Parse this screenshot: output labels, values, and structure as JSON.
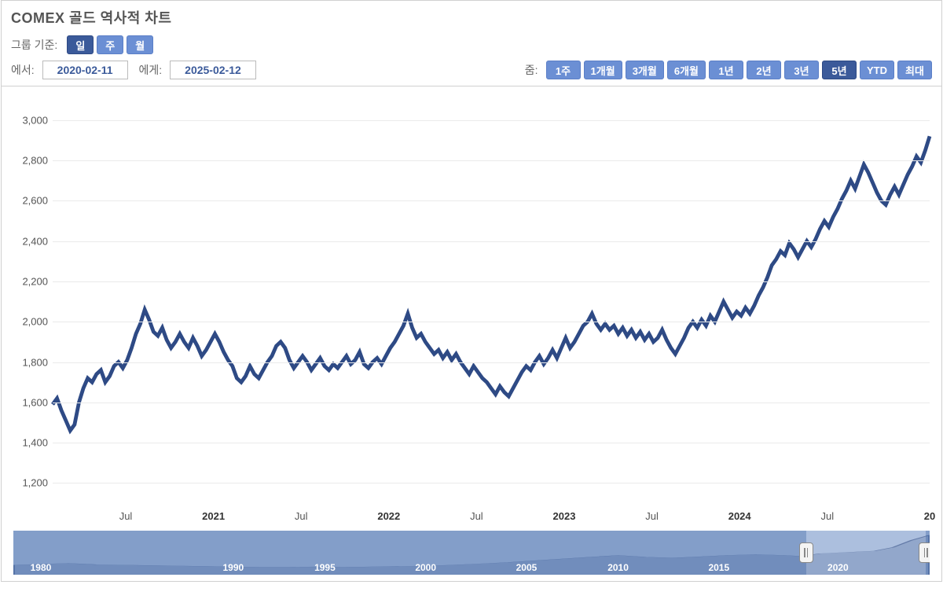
{
  "title": "COMEX 골드 역사적 차트",
  "group_by": {
    "label": "그룹 기준:",
    "options": [
      {
        "label": "일",
        "active": true
      },
      {
        "label": "주",
        "active": false
      },
      {
        "label": "월",
        "active": false
      }
    ]
  },
  "date_range": {
    "from_label": "에서:",
    "from_value": "2020-02-11",
    "to_label": "에게:",
    "to_value": "2025-02-12"
  },
  "zoom": {
    "label": "줌:",
    "options": [
      {
        "label": "1주",
        "active": false
      },
      {
        "label": "1개월",
        "active": false
      },
      {
        "label": "3개월",
        "active": false
      },
      {
        "label": "6개월",
        "active": false
      },
      {
        "label": "1년",
        "active": false
      },
      {
        "label": "2년",
        "active": false
      },
      {
        "label": "3년",
        "active": false
      },
      {
        "label": "5년",
        "active": true
      },
      {
        "label": "YTD",
        "active": false
      },
      {
        "label": "최대",
        "active": false
      }
    ]
  },
  "chart": {
    "type": "line",
    "line_color": "#2e4a85",
    "line_width": 1.6,
    "background_color": "#ffffff",
    "grid_color": "#eaeaea",
    "y": {
      "min": 1100,
      "max": 3050,
      "ticks": [
        1200,
        1400,
        1600,
        1800,
        2000,
        2200,
        2400,
        2600,
        2800,
        3000
      ],
      "fontsize": 13,
      "color": "#555555"
    },
    "x": {
      "min": 0,
      "max": 60,
      "ticks": [
        {
          "pos": 5,
          "label": "Jul",
          "bold": false
        },
        {
          "pos": 11,
          "label": "2021",
          "bold": true
        },
        {
          "pos": 17,
          "label": "Jul",
          "bold": false
        },
        {
          "pos": 23,
          "label": "2022",
          "bold": true
        },
        {
          "pos": 29,
          "label": "Jul",
          "bold": false
        },
        {
          "pos": 35,
          "label": "2023",
          "bold": true
        },
        {
          "pos": 41,
          "label": "Jul",
          "bold": false
        },
        {
          "pos": 47,
          "label": "2024",
          "bold": true
        },
        {
          "pos": 53,
          "label": "Jul",
          "bold": false
        },
        {
          "pos": 60,
          "label": "20",
          "bold": true
        }
      ],
      "fontsize": 13
    },
    "series": [
      [
        0,
        1590
      ],
      [
        0.3,
        1620
      ],
      [
        0.6,
        1560
      ],
      [
        0.9,
        1510
      ],
      [
        1.2,
        1460
      ],
      [
        1.5,
        1490
      ],
      [
        1.8,
        1600
      ],
      [
        2.1,
        1670
      ],
      [
        2.4,
        1720
      ],
      [
        2.7,
        1700
      ],
      [
        3.0,
        1740
      ],
      [
        3.3,
        1760
      ],
      [
        3.6,
        1700
      ],
      [
        3.9,
        1730
      ],
      [
        4.2,
        1780
      ],
      [
        4.5,
        1800
      ],
      [
        4.8,
        1770
      ],
      [
        5.1,
        1810
      ],
      [
        5.4,
        1870
      ],
      [
        5.7,
        1940
      ],
      [
        6.0,
        1990
      ],
      [
        6.3,
        2060
      ],
      [
        6.6,
        2010
      ],
      [
        6.9,
        1950
      ],
      [
        7.2,
        1930
      ],
      [
        7.5,
        1970
      ],
      [
        7.8,
        1910
      ],
      [
        8.1,
        1870
      ],
      [
        8.4,
        1900
      ],
      [
        8.7,
        1940
      ],
      [
        9.0,
        1900
      ],
      [
        9.3,
        1870
      ],
      [
        9.6,
        1920
      ],
      [
        9.9,
        1880
      ],
      [
        10.2,
        1830
      ],
      [
        10.5,
        1860
      ],
      [
        10.8,
        1900
      ],
      [
        11.1,
        1940
      ],
      [
        11.4,
        1900
      ],
      [
        11.7,
        1850
      ],
      [
        12.0,
        1810
      ],
      [
        12.3,
        1780
      ],
      [
        12.6,
        1720
      ],
      [
        12.9,
        1700
      ],
      [
        13.2,
        1730
      ],
      [
        13.5,
        1780
      ],
      [
        13.8,
        1740
      ],
      [
        14.1,
        1720
      ],
      [
        14.4,
        1760
      ],
      [
        14.7,
        1800
      ],
      [
        15.0,
        1830
      ],
      [
        15.3,
        1880
      ],
      [
        15.6,
        1900
      ],
      [
        15.9,
        1870
      ],
      [
        16.2,
        1810
      ],
      [
        16.5,
        1770
      ],
      [
        16.8,
        1800
      ],
      [
        17.1,
        1830
      ],
      [
        17.4,
        1800
      ],
      [
        17.7,
        1760
      ],
      [
        18.0,
        1790
      ],
      [
        18.3,
        1820
      ],
      [
        18.6,
        1780
      ],
      [
        18.9,
        1760
      ],
      [
        19.2,
        1790
      ],
      [
        19.5,
        1770
      ],
      [
        19.8,
        1800
      ],
      [
        20.1,
        1830
      ],
      [
        20.4,
        1790
      ],
      [
        20.7,
        1810
      ],
      [
        21.0,
        1850
      ],
      [
        21.3,
        1790
      ],
      [
        21.6,
        1770
      ],
      [
        21.9,
        1800
      ],
      [
        22.2,
        1820
      ],
      [
        22.5,
        1790
      ],
      [
        22.8,
        1830
      ],
      [
        23.1,
        1870
      ],
      [
        23.4,
        1900
      ],
      [
        23.7,
        1940
      ],
      [
        24.0,
        1980
      ],
      [
        24.3,
        2040
      ],
      [
        24.6,
        1970
      ],
      [
        24.9,
        1920
      ],
      [
        25.2,
        1940
      ],
      [
        25.5,
        1900
      ],
      [
        25.8,
        1870
      ],
      [
        26.1,
        1840
      ],
      [
        26.4,
        1860
      ],
      [
        26.7,
        1820
      ],
      [
        27.0,
        1850
      ],
      [
        27.3,
        1810
      ],
      [
        27.6,
        1840
      ],
      [
        27.9,
        1800
      ],
      [
        28.2,
        1770
      ],
      [
        28.5,
        1740
      ],
      [
        28.8,
        1780
      ],
      [
        29.1,
        1750
      ],
      [
        29.4,
        1720
      ],
      [
        29.7,
        1700
      ],
      [
        30.0,
        1670
      ],
      [
        30.3,
        1640
      ],
      [
        30.6,
        1680
      ],
      [
        30.9,
        1650
      ],
      [
        31.2,
        1630
      ],
      [
        31.5,
        1670
      ],
      [
        31.8,
        1710
      ],
      [
        32.1,
        1750
      ],
      [
        32.4,
        1780
      ],
      [
        32.7,
        1760
      ],
      [
        33.0,
        1800
      ],
      [
        33.3,
        1830
      ],
      [
        33.6,
        1790
      ],
      [
        33.9,
        1820
      ],
      [
        34.2,
        1860
      ],
      [
        34.5,
        1820
      ],
      [
        34.8,
        1870
      ],
      [
        35.1,
        1920
      ],
      [
        35.4,
        1870
      ],
      [
        35.7,
        1900
      ],
      [
        36.0,
        1940
      ],
      [
        36.3,
        1980
      ],
      [
        36.6,
        2000
      ],
      [
        36.9,
        2040
      ],
      [
        37.2,
        1990
      ],
      [
        37.5,
        1960
      ],
      [
        37.8,
        1990
      ],
      [
        38.1,
        1960
      ],
      [
        38.4,
        1980
      ],
      [
        38.7,
        1940
      ],
      [
        39.0,
        1970
      ],
      [
        39.3,
        1930
      ],
      [
        39.6,
        1960
      ],
      [
        39.9,
        1920
      ],
      [
        40.2,
        1950
      ],
      [
        40.5,
        1910
      ],
      [
        40.8,
        1940
      ],
      [
        41.1,
        1900
      ],
      [
        41.4,
        1920
      ],
      [
        41.7,
        1960
      ],
      [
        42.0,
        1910
      ],
      [
        42.3,
        1870
      ],
      [
        42.6,
        1840
      ],
      [
        42.9,
        1880
      ],
      [
        43.2,
        1920
      ],
      [
        43.5,
        1970
      ],
      [
        43.8,
        2000
      ],
      [
        44.1,
        1970
      ],
      [
        44.4,
        2010
      ],
      [
        44.7,
        1980
      ],
      [
        45.0,
        2030
      ],
      [
        45.3,
        2000
      ],
      [
        45.6,
        2050
      ],
      [
        45.9,
        2100
      ],
      [
        46.2,
        2060
      ],
      [
        46.5,
        2020
      ],
      [
        46.8,
        2050
      ],
      [
        47.1,
        2030
      ],
      [
        47.4,
        2070
      ],
      [
        47.7,
        2040
      ],
      [
        48.0,
        2080
      ],
      [
        48.3,
        2130
      ],
      [
        48.6,
        2170
      ],
      [
        48.9,
        2220
      ],
      [
        49.2,
        2280
      ],
      [
        49.5,
        2310
      ],
      [
        49.8,
        2350
      ],
      [
        50.1,
        2330
      ],
      [
        50.4,
        2390
      ],
      [
        50.7,
        2360
      ],
      [
        51.0,
        2320
      ],
      [
        51.3,
        2360
      ],
      [
        51.6,
        2400
      ],
      [
        51.9,
        2370
      ],
      [
        52.2,
        2410
      ],
      [
        52.5,
        2460
      ],
      [
        52.8,
        2500
      ],
      [
        53.1,
        2470
      ],
      [
        53.4,
        2520
      ],
      [
        53.7,
        2560
      ],
      [
        54.0,
        2610
      ],
      [
        54.3,
        2650
      ],
      [
        54.6,
        2700
      ],
      [
        54.9,
        2660
      ],
      [
        55.2,
        2720
      ],
      [
        55.5,
        2780
      ],
      [
        55.8,
        2740
      ],
      [
        56.1,
        2690
      ],
      [
        56.4,
        2640
      ],
      [
        56.7,
        2600
      ],
      [
        57.0,
        2580
      ],
      [
        57.3,
        2630
      ],
      [
        57.6,
        2670
      ],
      [
        57.9,
        2630
      ],
      [
        58.2,
        2680
      ],
      [
        58.5,
        2730
      ],
      [
        58.8,
        2770
      ],
      [
        59.1,
        2820
      ],
      [
        59.4,
        2790
      ],
      [
        59.7,
        2850
      ],
      [
        60.0,
        2920
      ]
    ]
  },
  "navigator": {
    "background_color": "#9db3d7",
    "mask_color": "rgba(110,140,190,0.55)",
    "sel_start_pct": 86.5,
    "sel_end_pct": 99.6,
    "x_labels": [
      {
        "pos_pct": 3,
        "label": "1980"
      },
      {
        "pos_pct": 24,
        "label": "1990"
      },
      {
        "pos_pct": 34,
        "label": "1995"
      },
      {
        "pos_pct": 45,
        "label": "2000"
      },
      {
        "pos_pct": 56,
        "label": "2005"
      },
      {
        "pos_pct": 66,
        "label": "2010"
      },
      {
        "pos_pct": 77,
        "label": "2015"
      },
      {
        "pos_pct": 90,
        "label": "2020"
      }
    ],
    "profile": [
      [
        0,
        22
      ],
      [
        3,
        24
      ],
      [
        6,
        26
      ],
      [
        9,
        23
      ],
      [
        12,
        22
      ],
      [
        15,
        21
      ],
      [
        18,
        20
      ],
      [
        21,
        19
      ],
      [
        24,
        18
      ],
      [
        27,
        17
      ],
      [
        30,
        17
      ],
      [
        33,
        18
      ],
      [
        36,
        17
      ],
      [
        39,
        18
      ],
      [
        42,
        19
      ],
      [
        45,
        20
      ],
      [
        48,
        22
      ],
      [
        51,
        25
      ],
      [
        54,
        28
      ],
      [
        57,
        32
      ],
      [
        60,
        36
      ],
      [
        63,
        40
      ],
      [
        66,
        44
      ],
      [
        69,
        40
      ],
      [
        72,
        38
      ],
      [
        75,
        41
      ],
      [
        78,
        44
      ],
      [
        81,
        46
      ],
      [
        84,
        44
      ],
      [
        86,
        42
      ],
      [
        88,
        48
      ],
      [
        90,
        50
      ],
      [
        92,
        52
      ],
      [
        94,
        54
      ],
      [
        96,
        62
      ],
      [
        98,
        78
      ],
      [
        100,
        90
      ]
    ],
    "area_fill": "#2e4a85",
    "area_opacity": 0.35
  }
}
